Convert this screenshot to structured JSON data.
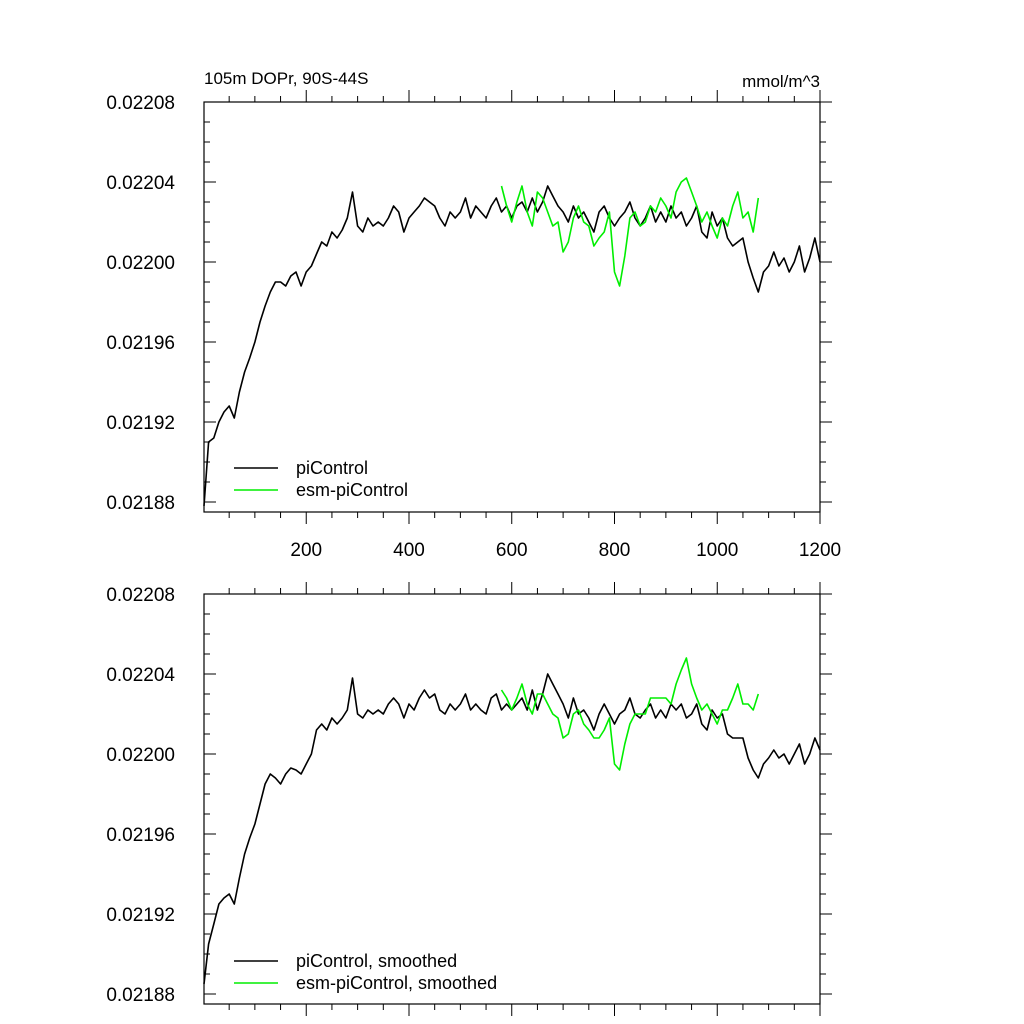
{
  "figure": {
    "title_left": "105m DOPr, 90S-44S",
    "title_right": "mmol/m^3"
  },
  "colors": {
    "piControl": "#000000",
    "esm_piControl": "#00ee00"
  },
  "chart_data": [
    {
      "type": "line",
      "name": "raw",
      "xlim": [
        1,
        1200
      ],
      "ylim": [
        0.021875,
        0.02208
      ],
      "xticks": [
        200,
        400,
        600,
        800,
        1000,
        1200
      ],
      "xtick_labels": [
        "200",
        "400",
        "600",
        "800",
        "1000",
        "1200"
      ],
      "yticks": [
        0.02188,
        0.02192,
        0.02196,
        0.022,
        0.02204,
        0.02208
      ],
      "ytick_labels": [
        "0.02188",
        "0.02192",
        "0.02196",
        "0.02200",
        "0.02204",
        "0.02208"
      ],
      "legend_position": "bottom-left",
      "series": [
        {
          "name": "piControl",
          "color_key": "piControl",
          "x": [
            1,
            10,
            20,
            30,
            40,
            50,
            60,
            70,
            80,
            90,
            100,
            110,
            120,
            130,
            140,
            150,
            160,
            170,
            180,
            190,
            200,
            210,
            220,
            230,
            240,
            250,
            260,
            270,
            280,
            290,
            300,
            310,
            320,
            330,
            340,
            350,
            360,
            370,
            380,
            390,
            400,
            410,
            420,
            430,
            440,
            450,
            460,
            470,
            480,
            490,
            500,
            510,
            520,
            530,
            540,
            550,
            560,
            570,
            580,
            590,
            600,
            610,
            620,
            630,
            640,
            650,
            660,
            670,
            680,
            690,
            700,
            710,
            720,
            730,
            740,
            750,
            760,
            770,
            780,
            790,
            800,
            810,
            820,
            830,
            840,
            850,
            860,
            870,
            880,
            890,
            900,
            910,
            920,
            930,
            940,
            950,
            960,
            970,
            980,
            990,
            1000,
            1010,
            1020,
            1030,
            1040,
            1050,
            1060,
            1070,
            1080,
            1090,
            1100,
            1110,
            1120,
            1130,
            1140,
            1150,
            1160,
            1170,
            1180,
            1190,
            1200
          ],
          "y": [
            0.021878,
            0.02191,
            0.021912,
            0.02192,
            0.021925,
            0.021928,
            0.021922,
            0.021935,
            0.021945,
            0.021952,
            0.02196,
            0.02197,
            0.021978,
            0.021985,
            0.02199,
            0.02199,
            0.021988,
            0.021993,
            0.021995,
            0.021988,
            0.021995,
            0.021998,
            0.022004,
            0.02201,
            0.022008,
            0.022015,
            0.022012,
            0.022016,
            0.022022,
            0.022035,
            0.022018,
            0.022015,
            0.022022,
            0.022018,
            0.02202,
            0.022018,
            0.022022,
            0.022028,
            0.022025,
            0.022015,
            0.022022,
            0.022025,
            0.022028,
            0.022032,
            0.02203,
            0.022028,
            0.022022,
            0.022018,
            0.022025,
            0.022022,
            0.022025,
            0.022032,
            0.022022,
            0.022028,
            0.022025,
            0.022022,
            0.022028,
            0.022032,
            0.022025,
            0.022028,
            0.022022,
            0.022028,
            0.02203,
            0.022025,
            0.022032,
            0.022025,
            0.02203,
            0.022038,
            0.022033,
            0.022028,
            0.022025,
            0.02202,
            0.022028,
            0.022022,
            0.022025,
            0.02202,
            0.022015,
            0.022025,
            0.022028,
            0.022022,
            0.022018,
            0.022022,
            0.022025,
            0.02203,
            0.022022,
            0.022018,
            0.022022,
            0.022028,
            0.02202,
            0.022025,
            0.02202,
            0.022028,
            0.022022,
            0.022025,
            0.022018,
            0.022022,
            0.022028,
            0.022015,
            0.022012,
            0.022025,
            0.022018,
            0.022022,
            0.022012,
            0.022008,
            0.02201,
            0.022012,
            0.022,
            0.021992,
            0.021985,
            0.021995,
            0.021998,
            0.022005,
            0.021998,
            0.022002,
            0.021995,
            0.022,
            0.022008,
            0.021995,
            0.022002,
            0.022012,
            0.022
          ]
        },
        {
          "name": "esm-piControl",
          "color_key": "esm_piControl",
          "x": [
            580,
            590,
            600,
            610,
            620,
            630,
            640,
            650,
            660,
            670,
            680,
            690,
            700,
            710,
            720,
            730,
            740,
            750,
            760,
            770,
            780,
            790,
            800,
            810,
            820,
            830,
            840,
            850,
            860,
            870,
            880,
            890,
            900,
            910,
            920,
            930,
            940,
            950,
            960,
            970,
            980,
            990,
            1000,
            1010,
            1020,
            1030,
            1040,
            1050,
            1060,
            1070,
            1080
          ],
          "y": [
            0.022038,
            0.022028,
            0.02202,
            0.02203,
            0.022038,
            0.022025,
            0.022018,
            0.022035,
            0.022032,
            0.022025,
            0.022018,
            0.02202,
            0.022005,
            0.02201,
            0.022022,
            0.022028,
            0.02202,
            0.022018,
            0.022008,
            0.022012,
            0.022015,
            0.022025,
            0.021995,
            0.021988,
            0.022003,
            0.022022,
            0.022025,
            0.022018,
            0.02202,
            0.022028,
            0.022025,
            0.022032,
            0.022028,
            0.022022,
            0.022035,
            0.02204,
            0.022042,
            0.022035,
            0.022028,
            0.02202,
            0.022025,
            0.022018,
            0.022012,
            0.022022,
            0.022018,
            0.022028,
            0.022035,
            0.022022,
            0.022025,
            0.022015,
            0.022032
          ]
        }
      ],
      "legend": [
        "piControl",
        "esm-piControl"
      ]
    },
    {
      "type": "line",
      "name": "smoothed",
      "xlim": [
        1,
        1200
      ],
      "ylim": [
        0.021875,
        0.02208
      ],
      "xticks": [
        200,
        400,
        600,
        800,
        1000,
        1200
      ],
      "yticks": [
        0.02188,
        0.02192,
        0.02196,
        0.022,
        0.02204,
        0.02208
      ],
      "ytick_labels": [
        "0.02188",
        "0.02192",
        "0.02196",
        "0.02200",
        "0.02204",
        "0.02208"
      ],
      "legend_position": "bottom-left",
      "series": [
        {
          "name": "piControl, smoothed",
          "color_key": "piControl",
          "x": [
            1,
            10,
            20,
            30,
            40,
            50,
            60,
            70,
            80,
            90,
            100,
            110,
            120,
            130,
            140,
            150,
            160,
            170,
            180,
            190,
            200,
            210,
            220,
            230,
            240,
            250,
            260,
            270,
            280,
            290,
            300,
            310,
            320,
            330,
            340,
            350,
            360,
            370,
            380,
            390,
            400,
            410,
            420,
            430,
            440,
            450,
            460,
            470,
            480,
            490,
            500,
            510,
            520,
            530,
            540,
            550,
            560,
            570,
            580,
            590,
            600,
            610,
            620,
            630,
            640,
            650,
            660,
            670,
            680,
            690,
            700,
            710,
            720,
            730,
            740,
            750,
            760,
            770,
            780,
            790,
            800,
            810,
            820,
            830,
            840,
            850,
            860,
            870,
            880,
            890,
            900,
            910,
            920,
            930,
            940,
            950,
            960,
            970,
            980,
            990,
            1000,
            1010,
            1020,
            1030,
            1040,
            1050,
            1060,
            1070,
            1080,
            1090,
            1100,
            1110,
            1120,
            1130,
            1140,
            1150,
            1160,
            1170,
            1180,
            1190,
            1200
          ],
          "y": [
            0.021885,
            0.021905,
            0.021915,
            0.021925,
            0.021928,
            0.02193,
            0.021925,
            0.021938,
            0.02195,
            0.021958,
            0.021965,
            0.021975,
            0.021985,
            0.02199,
            0.021988,
            0.021985,
            0.02199,
            0.021993,
            0.021992,
            0.02199,
            0.021995,
            0.022,
            0.022012,
            0.022015,
            0.022012,
            0.022018,
            0.022015,
            0.022018,
            0.022022,
            0.022038,
            0.02202,
            0.022018,
            0.022022,
            0.02202,
            0.022022,
            0.02202,
            0.022025,
            0.022028,
            0.022025,
            0.022018,
            0.022025,
            0.022022,
            0.022028,
            0.022032,
            0.022028,
            0.02203,
            0.022022,
            0.02202,
            0.022025,
            0.022022,
            0.022025,
            0.02203,
            0.022022,
            0.022025,
            0.022022,
            0.02202,
            0.022028,
            0.02203,
            0.022022,
            0.022025,
            0.022022,
            0.022025,
            0.022028,
            0.022022,
            0.022032,
            0.022022,
            0.02203,
            0.02204,
            0.022035,
            0.02203,
            0.022025,
            0.022018,
            0.022028,
            0.02202,
            0.022022,
            0.022018,
            0.022012,
            0.02202,
            0.022025,
            0.02202,
            0.022015,
            0.02202,
            0.022022,
            0.022028,
            0.02202,
            0.022018,
            0.022022,
            0.022025,
            0.022018,
            0.022022,
            0.022018,
            0.022025,
            0.022022,
            0.022025,
            0.022018,
            0.02202,
            0.022025,
            0.022015,
            0.022012,
            0.022022,
            0.022018,
            0.02202,
            0.02201,
            0.022008,
            0.022008,
            0.022008,
            0.021998,
            0.021992,
            0.021988,
            0.021995,
            0.021998,
            0.022002,
            0.021998,
            0.022,
            0.021995,
            0.022,
            0.022005,
            0.021995,
            0.022,
            0.022008,
            0.022002
          ]
        },
        {
          "name": "esm-piControl, smoothed",
          "color_key": "esm_piControl",
          "x": [
            580,
            590,
            600,
            610,
            620,
            630,
            640,
            650,
            660,
            670,
            680,
            690,
            700,
            710,
            720,
            730,
            740,
            750,
            760,
            770,
            780,
            790,
            800,
            810,
            820,
            830,
            840,
            850,
            860,
            870,
            880,
            890,
            900,
            910,
            920,
            930,
            940,
            950,
            960,
            970,
            980,
            990,
            1000,
            1010,
            1020,
            1030,
            1040,
            1050,
            1060,
            1070,
            1080
          ],
          "y": [
            0.022032,
            0.022028,
            0.022022,
            0.022028,
            0.022035,
            0.022025,
            0.02202,
            0.02203,
            0.02203,
            0.022025,
            0.02202,
            0.022018,
            0.022008,
            0.02201,
            0.02202,
            0.022022,
            0.022015,
            0.022012,
            0.022008,
            0.022008,
            0.022012,
            0.022018,
            0.021995,
            0.021992,
            0.022005,
            0.022015,
            0.02202,
            0.02202,
            0.02202,
            0.022028,
            0.022028,
            0.022028,
            0.022028,
            0.022025,
            0.022035,
            0.022042,
            0.022048,
            0.022035,
            0.022028,
            0.022022,
            0.022025,
            0.02202,
            0.022015,
            0.022022,
            0.022022,
            0.022028,
            0.022035,
            0.022025,
            0.022025,
            0.022022,
            0.02203
          ]
        }
      ],
      "legend": [
        "piControl, smoothed",
        "esm-piControl, smoothed"
      ]
    }
  ]
}
